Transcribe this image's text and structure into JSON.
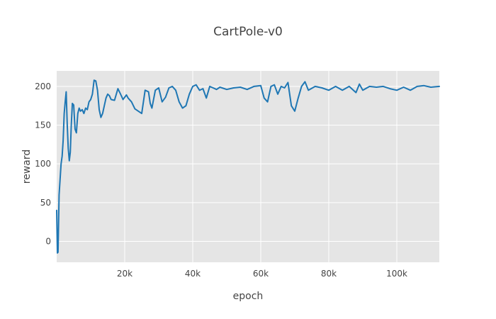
{
  "chart_data": {
    "type": "line",
    "title": "CartPole-v0",
    "xlabel": "epoch",
    "ylabel": "reward",
    "xlim": [
      0,
      112500
    ],
    "ylim": [
      -27,
      220
    ],
    "grid": true,
    "legend": "none",
    "x_ticks": [
      {
        "value": 20000,
        "label": "20k"
      },
      {
        "value": 40000,
        "label": "40k"
      },
      {
        "value": 60000,
        "label": "60k"
      },
      {
        "value": 80000,
        "label": "80k"
      },
      {
        "value": 100000,
        "label": "100k"
      }
    ],
    "y_ticks": [
      {
        "value": 0,
        "label": "0"
      },
      {
        "value": 50,
        "label": "50"
      },
      {
        "value": 100,
        "label": "100"
      },
      {
        "value": 150,
        "label": "150"
      },
      {
        "value": 200,
        "label": "200"
      }
    ],
    "series": [
      {
        "color": "#1f77b4",
        "x": [
          0,
          200,
          400,
          700,
          1000,
          1300,
          1600,
          1900,
          2200,
          2500,
          2800,
          3100,
          3400,
          3700,
          4000,
          4300,
          4600,
          5000,
          5400,
          5800,
          6200,
          6600,
          7000,
          7500,
          8000,
          8500,
          9000,
          9500,
          10000,
          10500,
          11000,
          11500,
          12000,
          12500,
          13000,
          13500,
          14000,
          14500,
          15000,
          15500,
          16000,
          17000,
          18000,
          19000,
          19500,
          20000,
          20500,
          21000,
          22000,
          23000,
          24000,
          25000,
          26000,
          27000,
          27500,
          28000,
          29000,
          30000,
          31000,
          32000,
          33000,
          34000,
          35000,
          36000,
          37000,
          38000,
          39000,
          40000,
          41000,
          42000,
          43000,
          44000,
          45000,
          46000,
          47000,
          48000,
          50000,
          52000,
          54000,
          56000,
          58000,
          60000,
          61000,
          62000,
          63000,
          64000,
          65000,
          66000,
          67000,
          68000,
          69000,
          70000,
          71000,
          72000,
          73000,
          74000,
          76000,
          78000,
          80000,
          82000,
          84000,
          86000,
          88000,
          89000,
          90000,
          92000,
          94000,
          96000,
          98000,
          100000,
          102000,
          104000,
          106000,
          108000,
          110000,
          112500
        ],
        "y": [
          40,
          -15,
          -14,
          60,
          80,
          100,
          110,
          130,
          165,
          180,
          193,
          150,
          120,
          104,
          115,
          150,
          178,
          176,
          145,
          140,
          165,
          172,
          168,
          170,
          165,
          172,
          170,
          180,
          183,
          190,
          208,
          207,
          195,
          170,
          160,
          165,
          175,
          185,
          190,
          188,
          183,
          182,
          197,
          188,
          183,
          186,
          189,
          185,
          180,
          171,
          168,
          165,
          195,
          193,
          178,
          172,
          195,
          198,
          180,
          186,
          198,
          200,
          195,
          180,
          172,
          175,
          190,
          200,
          202,
          195,
          197,
          185,
          200,
          198,
          196,
          199,
          196,
          198,
          199,
          196,
          200,
          201,
          185,
          180,
          200,
          202,
          190,
          200,
          198,
          205,
          175,
          168,
          185,
          200,
          206,
          195,
          200,
          198,
          195,
          200,
          195,
          200,
          192,
          203,
          195,
          200,
          199,
          200,
          197,
          195,
          199,
          195,
          200,
          201,
          199,
          200
        ]
      }
    ]
  }
}
